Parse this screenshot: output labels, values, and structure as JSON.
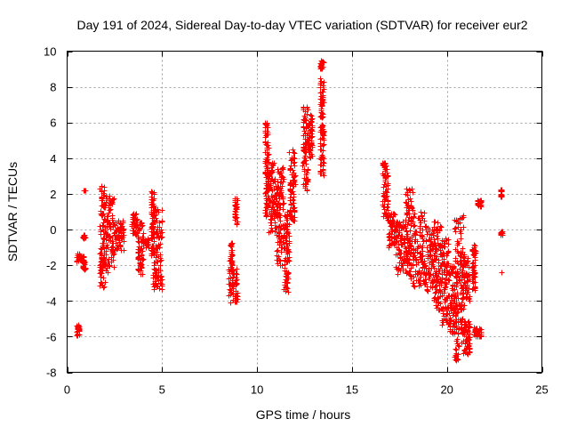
{
  "chart_data": {
    "type": "scatter",
    "title": "Day 191 of 2024, Sidereal Day-to-day VTEC variation (SDTVAR) for receiver eur2",
    "xlabel": "GPS time / hours",
    "ylabel": "SDTVAR / TECUs",
    "xlim": [
      0,
      25
    ],
    "ylim": [
      -8,
      10
    ],
    "xticks": [
      0,
      5,
      10,
      15,
      20,
      25
    ],
    "yticks": [
      -8,
      -6,
      -4,
      -2,
      0,
      2,
      4,
      6,
      8,
      10
    ],
    "grid": true,
    "marker": "+",
    "color": "#ff0000",
    "series": [
      {
        "name": "SDTVAR",
        "clusters": [
          {
            "x": [
              0.5,
              0.65
            ],
            "y": [
              -6.0,
              -5.3
            ]
          },
          {
            "x": [
              0.5,
              0.7
            ],
            "y": [
              -1.8,
              -1.3
            ]
          },
          {
            "x": [
              0.8,
              0.95
            ],
            "y": [
              -2.3,
              -1.4
            ]
          },
          {
            "x": [
              0.8,
              0.95
            ],
            "y": [
              -0.5,
              -0.3
            ]
          },
          {
            "x": [
              0.85,
              0.95
            ],
            "y": [
              2.2,
              2.2
            ]
          },
          {
            "x": [
              1.7,
              2.0
            ],
            "y": [
              -3.4,
              2.5
            ]
          },
          {
            "x": [
              2.0,
              2.5
            ],
            "y": [
              -2.5,
              1.9
            ]
          },
          {
            "x": [
              2.5,
              3.0
            ],
            "y": [
              -1.2,
              0.5
            ]
          },
          {
            "x": [
              3.4,
              3.7
            ],
            "y": [
              -0.3,
              0.9
            ]
          },
          {
            "x": [
              3.7,
              4.0
            ],
            "y": [
              -2.6,
              0.5
            ]
          },
          {
            "x": [
              4.0,
              4.3
            ],
            "y": [
              -1.0,
              -0.5
            ]
          },
          {
            "x": [
              4.4,
              4.6
            ],
            "y": [
              -1.5,
              2.2
            ]
          },
          {
            "x": [
              4.5,
              5.0
            ],
            "y": [
              -3.4,
              1.3
            ]
          },
          {
            "x": [
              8.55,
              8.7
            ],
            "y": [
              -2.3,
              -0.7
            ]
          },
          {
            "x": [
              8.5,
              8.95
            ],
            "y": [
              -4.1,
              -2.1
            ]
          },
          {
            "x": [
              8.8,
              8.95
            ],
            "y": [
              0.3,
              1.8
            ]
          },
          {
            "x": [
              10.4,
              10.6
            ],
            "y": [
              0.7,
              6.0
            ]
          },
          {
            "x": [
              10.6,
              11.0
            ],
            "y": [
              -0.2,
              3.8
            ]
          },
          {
            "x": [
              11.0,
              11.4
            ],
            "y": [
              -2.0,
              3.5
            ]
          },
          {
            "x": [
              11.4,
              11.7
            ],
            "y": [
              -3.5,
              1.0
            ]
          },
          {
            "x": [
              11.7,
              12.0
            ],
            "y": [
              0.5,
              4.5
            ]
          },
          {
            "x": [
              12.4,
              12.7
            ],
            "y": [
              2.2,
              7.0
            ]
          },
          {
            "x": [
              12.7,
              12.9
            ],
            "y": [
              4.0,
              6.5
            ]
          },
          {
            "x": [
              13.3,
              13.5
            ],
            "y": [
              3.0,
              8.5
            ]
          },
          {
            "x": [
              13.3,
              13.5
            ],
            "y": [
              9.0,
              9.5
            ]
          },
          {
            "x": [
              16.6,
              16.9
            ],
            "y": [
              0.5,
              3.8
            ]
          },
          {
            "x": [
              16.9,
              17.3
            ],
            "y": [
              -1.0,
              1.0
            ]
          },
          {
            "x": [
              17.3,
              17.8
            ],
            "y": [
              -2.5,
              0.5
            ]
          },
          {
            "x": [
              17.8,
              18.2
            ],
            "y": [
              -2.8,
              2.3
            ]
          },
          {
            "x": [
              18.2,
              18.8
            ],
            "y": [
              -3.2,
              1.0
            ]
          },
          {
            "x": [
              18.8,
              19.3
            ],
            "y": [
              -3.5,
              0.3
            ]
          },
          {
            "x": [
              19.3,
              19.7
            ],
            "y": [
              -4.5,
              0.5
            ]
          },
          {
            "x": [
              19.7,
              20.1
            ],
            "y": [
              -5.5,
              -0.5
            ]
          },
          {
            "x": [
              20.1,
              20.5
            ],
            "y": [
              -6.0,
              -2.0
            ]
          },
          {
            "x": [
              20.4,
              20.9
            ],
            "y": [
              -7.5,
              0.8
            ]
          },
          {
            "x": [
              20.8,
              21.2
            ],
            "y": [
              -4.0,
              -1.5
            ]
          },
          {
            "x": [
              20.9,
              21.2
            ],
            "y": [
              -7.0,
              -5.0
            ]
          },
          {
            "x": [
              21.3,
              21.5
            ],
            "y": [
              -3.4,
              -0.8
            ]
          },
          {
            "x": [
              21.4,
              21.8
            ],
            "y": [
              -6.0,
              -5.5
            ]
          },
          {
            "x": [
              21.6,
              21.8
            ],
            "y": [
              1.3,
              1.7
            ]
          },
          {
            "x": [
              22.8,
              22.9
            ],
            "y": [
              1.8,
              2.3
            ]
          },
          {
            "x": [
              22.8,
              22.9
            ],
            "y": [
              -0.3,
              -0.1
            ]
          },
          {
            "x": [
              22.85,
              22.85
            ],
            "y": [
              -2.4,
              -2.4
            ]
          }
        ]
      }
    ]
  }
}
